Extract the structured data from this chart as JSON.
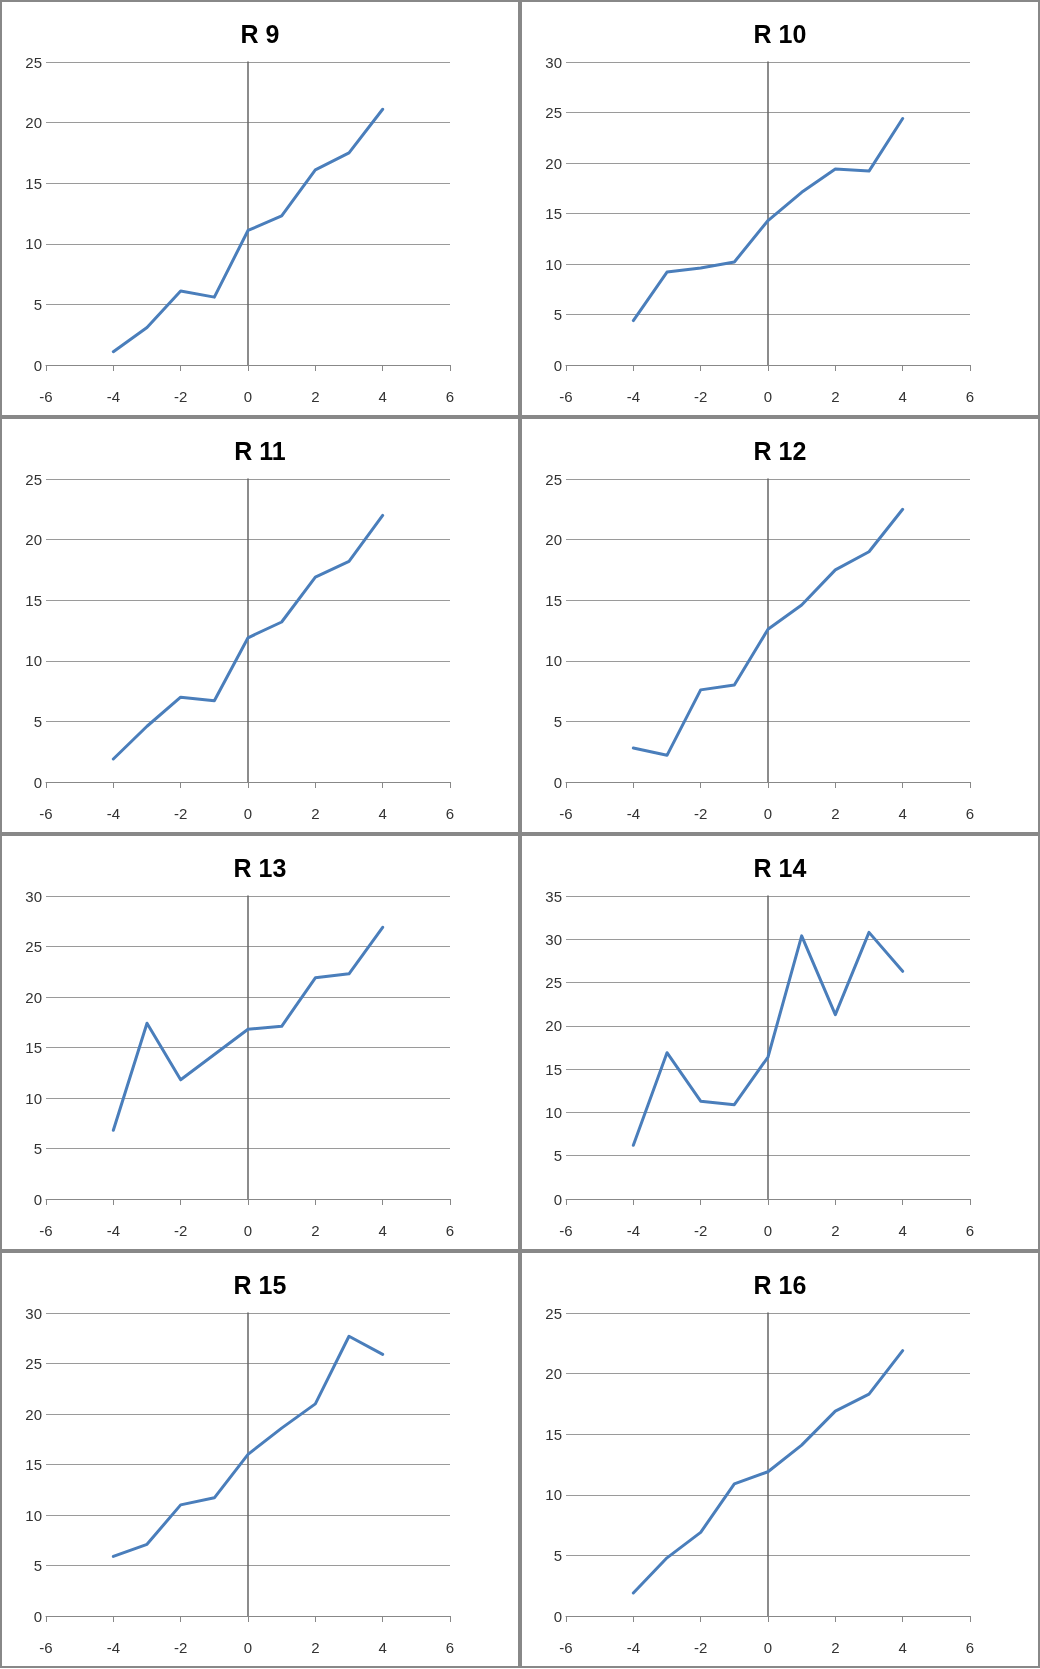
{
  "chart_data": [
    {
      "type": "line",
      "title": "R 9",
      "x": [
        -4,
        -3,
        -2,
        -1,
        0,
        1,
        2,
        3,
        4
      ],
      "values": [
        1.1,
        3.1,
        6.1,
        5.6,
        11.1,
        12.3,
        16.1,
        17.5,
        21.1
      ],
      "color": "#4a7ebb",
      "xlim": [
        -6,
        6
      ],
      "xticks": [
        -6,
        -4,
        -2,
        0,
        2,
        4,
        6
      ],
      "ylim": [
        0,
        25
      ],
      "yticks": [
        0,
        5,
        10,
        15,
        20,
        25
      ],
      "grid": "y",
      "marker": "none",
      "line_style": "solid"
    },
    {
      "type": "line",
      "title": "R 10",
      "x": [
        -4,
        -3,
        -2,
        -1,
        0,
        1,
        2,
        3,
        4
      ],
      "values": [
        4.4,
        9.2,
        9.6,
        10.2,
        14.3,
        17.1,
        19.4,
        19.2,
        24.4
      ],
      "color": "#4a7ebb",
      "xlim": [
        -6,
        6
      ],
      "xticks": [
        -6,
        -4,
        -2,
        0,
        2,
        4,
        6
      ],
      "ylim": [
        0,
        30
      ],
      "yticks": [
        0,
        5,
        10,
        15,
        20,
        25,
        30
      ],
      "grid": "y",
      "marker": "none",
      "line_style": "solid"
    },
    {
      "type": "line",
      "title": "R 11",
      "x": [
        -4,
        -3,
        -2,
        -1,
        0,
        1,
        2,
        3,
        4
      ],
      "values": [
        1.9,
        4.6,
        7.0,
        6.7,
        11.9,
        13.2,
        16.9,
        18.2,
        22.0
      ],
      "color": "#4a7ebb",
      "xlim": [
        -6,
        6
      ],
      "xticks": [
        -6,
        -4,
        -2,
        0,
        2,
        4,
        6
      ],
      "ylim": [
        0,
        25
      ],
      "yticks": [
        0,
        5,
        10,
        15,
        20,
        25
      ],
      "grid": "y",
      "marker": "none",
      "line_style": "solid"
    },
    {
      "type": "line",
      "title": "R 12",
      "x": [
        -4,
        -3,
        -2,
        -1,
        0,
        1,
        2,
        3,
        4
      ],
      "values": [
        2.8,
        2.2,
        7.6,
        8.0,
        12.6,
        14.6,
        17.5,
        19.0,
        22.5
      ],
      "color": "#4a7ebb",
      "xlim": [
        -6,
        6
      ],
      "xticks": [
        -6,
        -4,
        -2,
        0,
        2,
        4,
        6
      ],
      "ylim": [
        0,
        25
      ],
      "yticks": [
        0,
        5,
        10,
        15,
        20,
        25
      ],
      "grid": "y",
      "marker": "none",
      "line_style": "solid"
    },
    {
      "type": "line",
      "title": "R 13",
      "x": [
        -4,
        -3,
        -2,
        -1,
        0,
        1,
        2,
        3,
        4
      ],
      "values": [
        6.8,
        17.4,
        11.8,
        14.3,
        16.8,
        17.1,
        21.9,
        22.3,
        26.9
      ],
      "color": "#4a7ebb",
      "xlim": [
        -6,
        6
      ],
      "xticks": [
        -6,
        -4,
        -2,
        0,
        2,
        4,
        6
      ],
      "ylim": [
        0,
        30
      ],
      "yticks": [
        0,
        5,
        10,
        15,
        20,
        25,
        30
      ],
      "grid": "y",
      "marker": "none",
      "line_style": "solid"
    },
    {
      "type": "line",
      "title": "R 14",
      "x": [
        -4,
        -3,
        -2,
        -1,
        0,
        1,
        2,
        3,
        4
      ],
      "values": [
        6.2,
        16.9,
        11.3,
        10.9,
        16.4,
        30.4,
        21.3,
        30.8,
        26.3
      ],
      "color": "#4a7ebb",
      "xlim": [
        -6,
        6
      ],
      "xticks": [
        -6,
        -4,
        -2,
        0,
        2,
        4,
        6
      ],
      "ylim": [
        0,
        35
      ],
      "yticks": [
        0,
        5,
        10,
        15,
        20,
        25,
        30,
        35
      ],
      "grid": "y",
      "marker": "none",
      "line_style": "solid"
    },
    {
      "type": "line",
      "title": "R 15",
      "x": [
        -4,
        -3,
        -2,
        -1,
        0,
        1,
        2,
        3,
        4
      ],
      "values": [
        5.9,
        7.1,
        11.0,
        11.7,
        16.0,
        18.6,
        21.0,
        27.7,
        25.9
      ],
      "color": "#4a7ebb",
      "xlim": [
        -6,
        6
      ],
      "xticks": [
        -6,
        -4,
        -2,
        0,
        2,
        4,
        6
      ],
      "ylim": [
        0,
        30
      ],
      "yticks": [
        0,
        5,
        10,
        15,
        20,
        25,
        30
      ],
      "grid": "y",
      "marker": "none",
      "line_style": "solid"
    },
    {
      "type": "line",
      "title": "R 16",
      "x": [
        -4,
        -3,
        -2,
        -1,
        0,
        1,
        2,
        3,
        4
      ],
      "values": [
        1.9,
        4.8,
        6.9,
        10.9,
        11.9,
        14.1,
        16.9,
        18.3,
        21.9
      ],
      "color": "#4a7ebb",
      "xlim": [
        -6,
        6
      ],
      "xticks": [
        -6,
        -4,
        -2,
        0,
        2,
        4,
        6
      ],
      "ylim": [
        0,
        25
      ],
      "yticks": [
        0,
        5,
        10,
        15,
        20,
        25
      ],
      "grid": "y",
      "marker": "none",
      "line_style": "solid"
    }
  ]
}
